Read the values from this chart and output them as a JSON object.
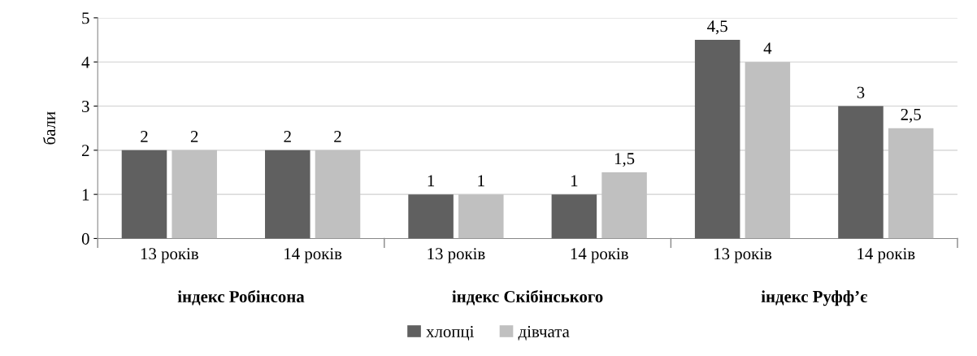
{
  "chart_data": {
    "type": "bar",
    "ylabel": "бали",
    "categories": [
      "13 років",
      "14 років",
      "13 років",
      "14 років",
      "13 років",
      "14 років"
    ],
    "series": [
      {
        "name": "хлопці",
        "color": "#606060",
        "values": [
          2,
          2,
          1,
          1,
          4.5,
          3
        ],
        "value_labels": [
          "2",
          "2",
          "1",
          "1",
          "4,5",
          "3"
        ]
      },
      {
        "name": "дівчата",
        "color": "#c0c0c0",
        "values": [
          2,
          2,
          1,
          1.5,
          4,
          2.5
        ],
        "value_labels": [
          "2",
          "2",
          "1",
          "1,5",
          "4",
          "2,5"
        ]
      }
    ],
    "annotations": [
      "індекс Робінсона",
      "індекс Скібінського",
      "індекс Руфф’є"
    ],
    "ylim": [
      0,
      5
    ],
    "yticks": [
      0,
      1,
      2,
      3,
      4,
      5
    ],
    "grid": "y",
    "legend": "bottom"
  }
}
